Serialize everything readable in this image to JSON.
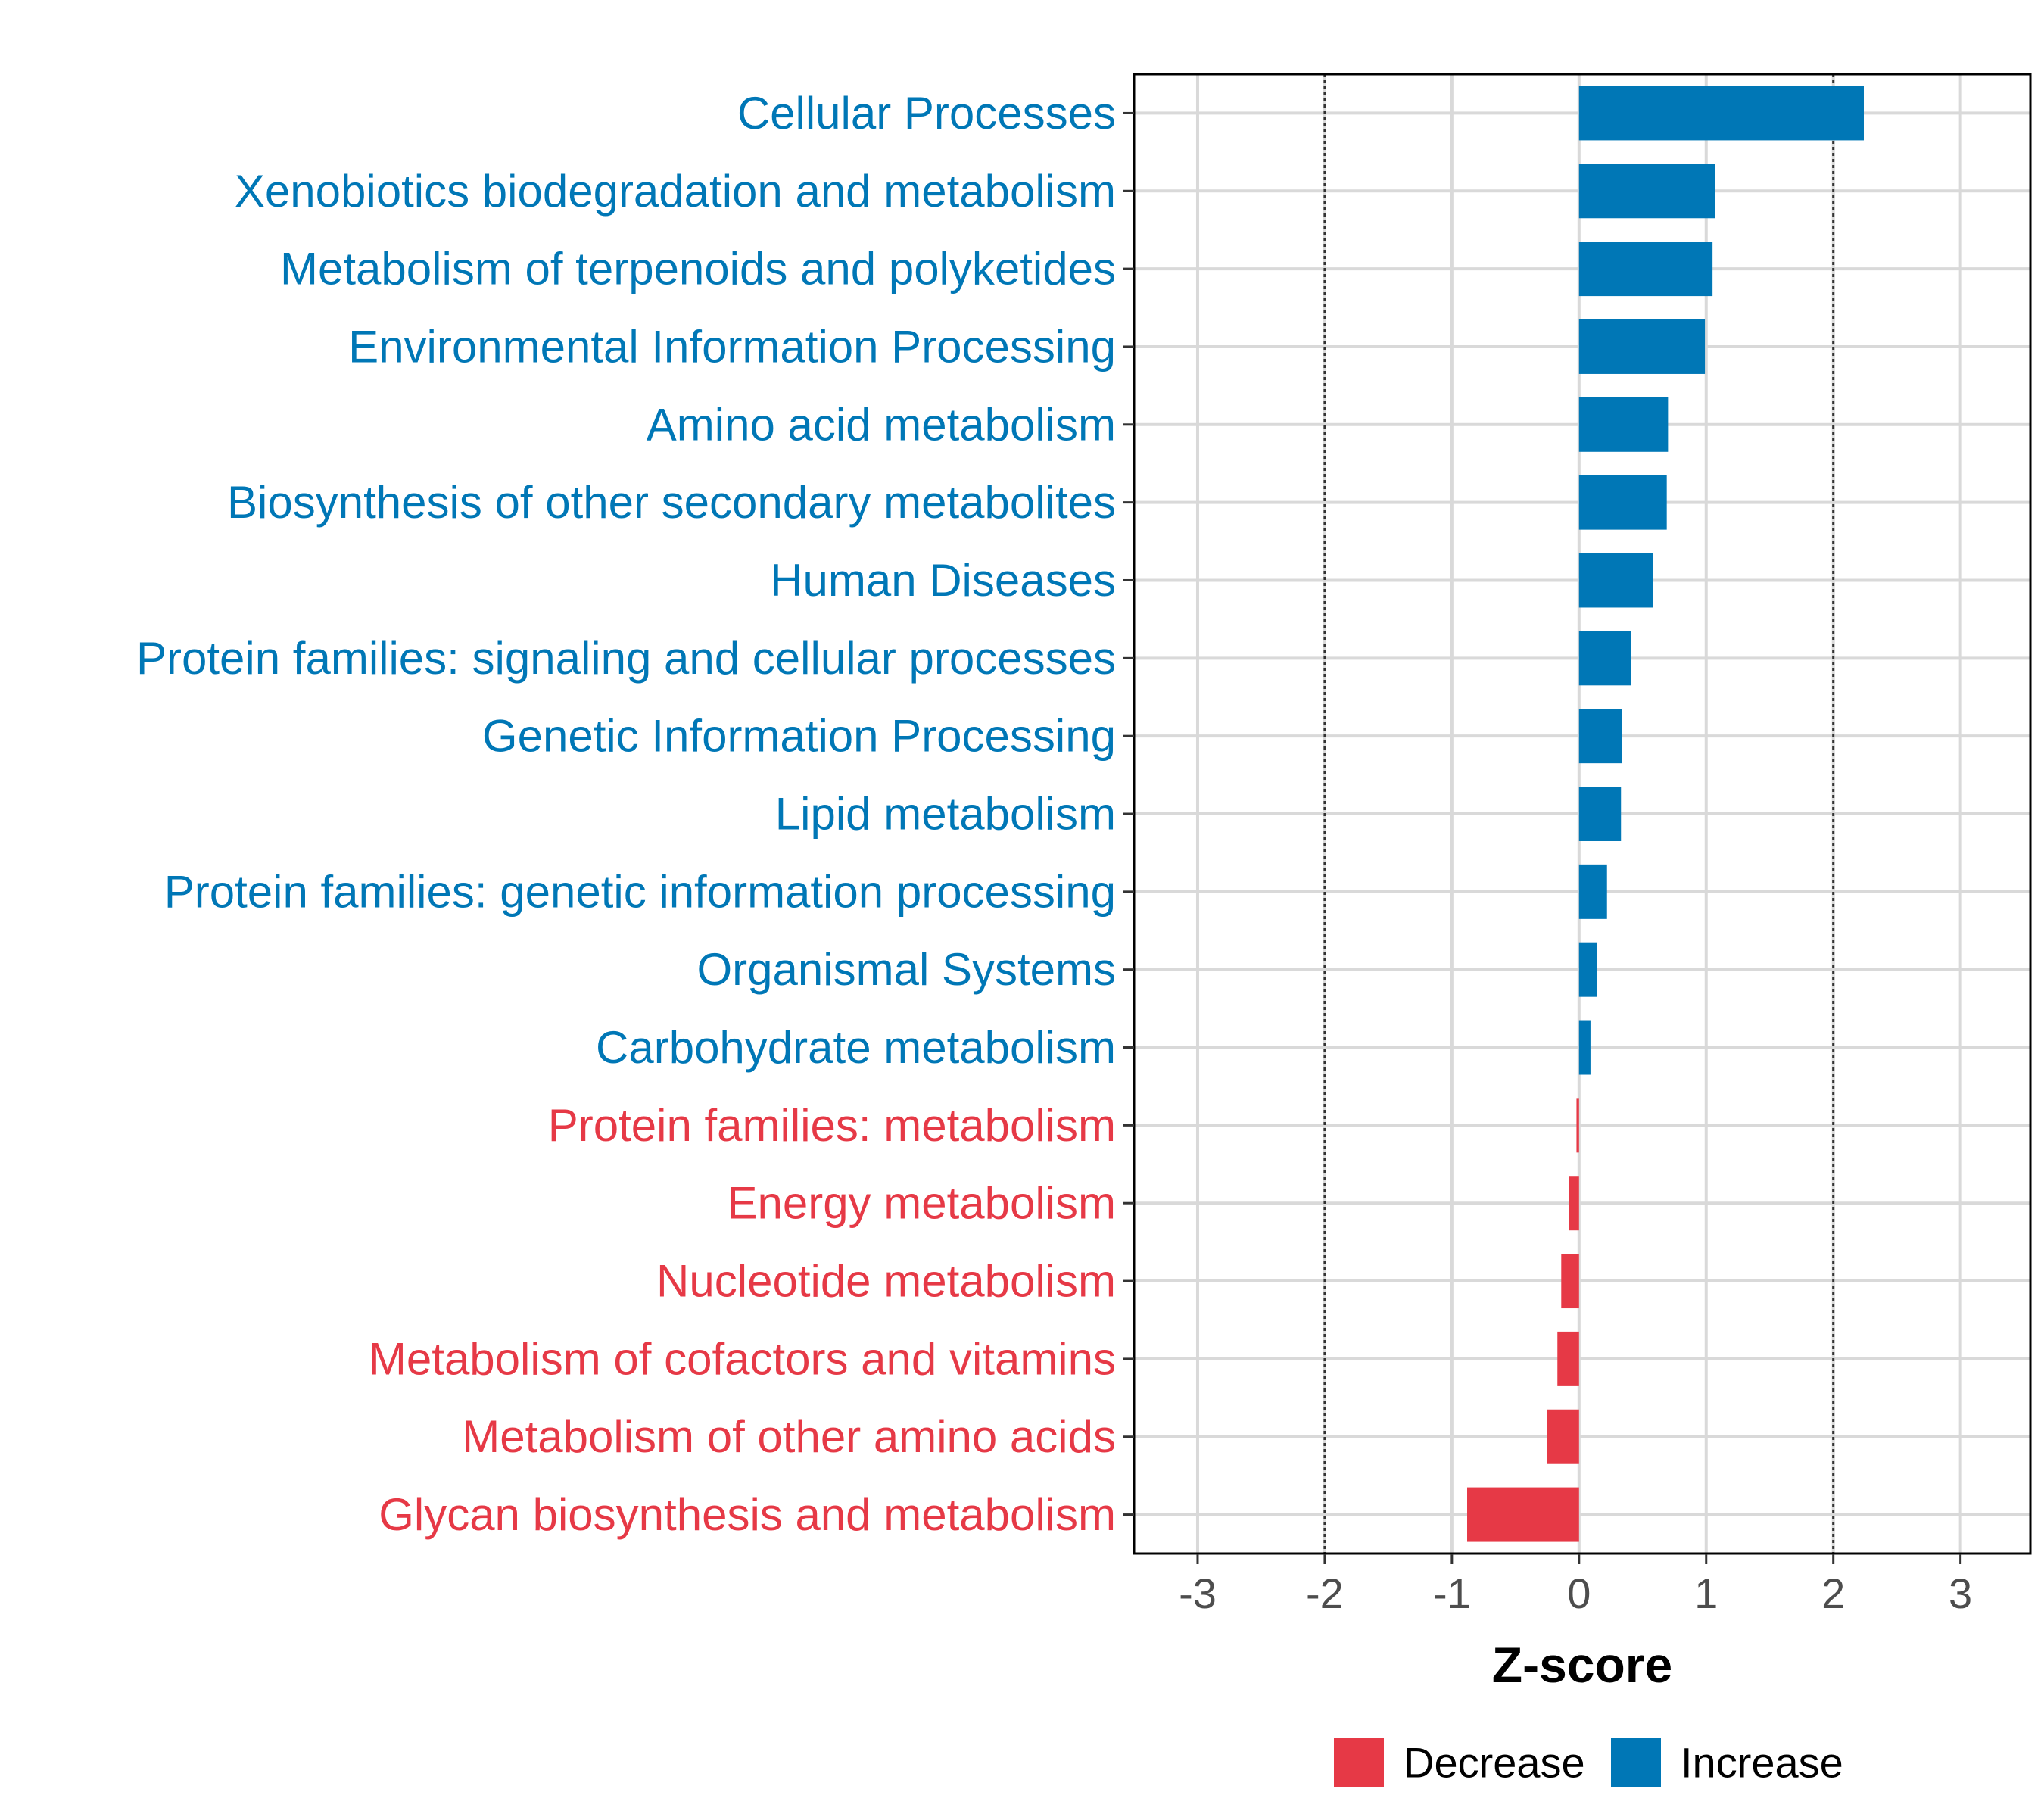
{
  "chart_data": {
    "type": "bar",
    "orientation": "horizontal",
    "xlabel": "Z-score",
    "xlim": [
      -3.5,
      3.55
    ],
    "xticks": [
      -3,
      -2,
      -1,
      0,
      1,
      2,
      3
    ],
    "xtick_labels": [
      "-3",
      "-2",
      "-1",
      "0",
      "1",
      "2",
      "3"
    ],
    "reference_lines": [
      -2,
      2
    ],
    "grid": true,
    "legend_position": "bottom",
    "legend": [
      {
        "name": "Decrease",
        "color": "#E63946"
      },
      {
        "name": "Increase",
        "color": "#0077B6"
      }
    ],
    "colors": {
      "Decrease": "#E63946",
      "Increase": "#0077B6"
    },
    "categories": [
      "Cellular Processes",
      "Xenobiotics biodegradation and metabolism",
      "Metabolism of terpenoids and polyketides",
      "Environmental Information Processing",
      "Amino acid metabolism",
      "Biosynthesis of other secondary metabolites",
      "Human Diseases",
      "Protein families: signaling and cellular processes",
      "Genetic Information Processing",
      "Lipid metabolism",
      "Protein families: genetic information processing",
      "Organismal Systems",
      "Carbohydrate metabolism",
      "Protein families: metabolism",
      "Energy metabolism",
      "Nucleotide metabolism",
      "Metabolism of cofactors and vitamins",
      "Metabolism of other amino acids",
      "Glycan biosynthesis and metabolism"
    ],
    "values": [
      2.24,
      1.07,
      1.05,
      0.99,
      0.7,
      0.69,
      0.58,
      0.41,
      0.34,
      0.33,
      0.22,
      0.14,
      0.09,
      -0.02,
      -0.08,
      -0.14,
      -0.17,
      -0.25,
      -0.88
    ],
    "groups": [
      "Increase",
      "Increase",
      "Increase",
      "Increase",
      "Increase",
      "Increase",
      "Increase",
      "Increase",
      "Increase",
      "Increase",
      "Increase",
      "Increase",
      "Increase",
      "Decrease",
      "Decrease",
      "Decrease",
      "Decrease",
      "Decrease",
      "Decrease"
    ]
  }
}
